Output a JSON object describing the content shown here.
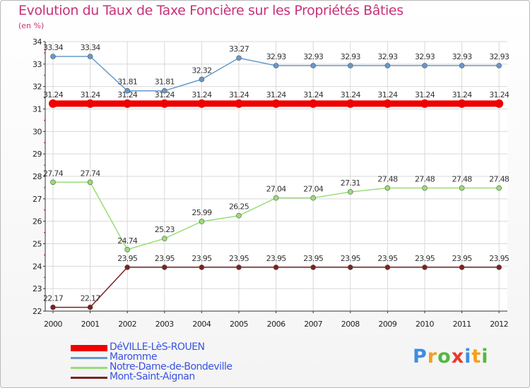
{
  "title": "Evolution du Taux de Taxe Foncière sur les Propriétés Bâties",
  "unit_label": "(en %)",
  "logo": {
    "letters": [
      "P",
      "r",
      "o",
      "x",
      "i",
      "t",
      "i"
    ],
    "colors": [
      "#3e8ee0",
      "#f4a020",
      "#54b840",
      "#e83a28",
      "#3e8ee0",
      "#f4a020",
      "#54b840"
    ]
  },
  "chart_data": {
    "type": "line",
    "title": "Evolution du Taux de Taxe Foncière sur les Propriétés Bâties",
    "ylabel": "(en %)",
    "xlabel": "",
    "ylim": [
      22,
      34
    ],
    "yticks": [
      "22",
      "23",
      "24",
      "25",
      "26",
      "27",
      "28",
      "29",
      "30",
      "31",
      "32",
      "33",
      "34"
    ],
    "x": [
      "2000",
      "2001",
      "2002",
      "2003",
      "2004",
      "2005",
      "2006",
      "2007",
      "2008",
      "2009",
      "2010",
      "2011",
      "2012"
    ],
    "series": [
      {
        "name": "DéVILLE-LèS-ROUEN",
        "color": "#ee0000",
        "values": [
          31.24,
          31.24,
          31.24,
          31.24,
          31.24,
          31.24,
          31.24,
          31.24,
          31.24,
          31.24,
          31.24,
          31.24,
          31.24
        ],
        "labels": [
          "31.24",
          "31.24",
          "31.24",
          "31.24",
          "31.24",
          "31.24",
          "31.24",
          "31.24",
          "31.24",
          "31.24",
          "31.24",
          "31.24",
          "31.24"
        ]
      },
      {
        "name": "Maromme",
        "color": "#6699cc",
        "values": [
          33.34,
          33.34,
          31.81,
          31.81,
          32.32,
          33.27,
          32.93,
          32.93,
          32.93,
          32.93,
          32.93,
          32.93,
          32.93
        ],
        "labels": [
          "33.34",
          "33.34",
          "31.81",
          "31.81",
          "32.32",
          "33.27",
          "32.93",
          "32.93",
          "32.93",
          "32.93",
          "32.93",
          "32.93",
          "32.93"
        ]
      },
      {
        "name": "Notre-Dame-de-Bondeville",
        "color": "#99dd77",
        "values": [
          27.74,
          27.74,
          24.74,
          25.23,
          25.99,
          26.25,
          27.04,
          27.04,
          27.31,
          27.48,
          27.48,
          27.48,
          27.48
        ],
        "labels": [
          "27.74",
          "27.74",
          "24.74",
          "25.23",
          "25.99",
          "26.25",
          "27.04",
          "27.04",
          "27.31",
          "27.48",
          "27.48",
          "27.48",
          "27.48"
        ]
      },
      {
        "name": "Mont-Saint-Aignan",
        "color": "#7a2222",
        "values": [
          22.17,
          22.17,
          23.95,
          23.95,
          23.95,
          23.95,
          23.95,
          23.95,
          23.95,
          23.95,
          23.95,
          23.95,
          23.95
        ],
        "labels": [
          "22.17",
          "22.17",
          "23.95",
          "23.95",
          "23.95",
          "23.95",
          "23.95",
          "23.95",
          "23.95",
          "23.95",
          "23.95",
          "23.95",
          "23.95"
        ]
      }
    ],
    "legend": "bottom-left",
    "grid": true
  }
}
